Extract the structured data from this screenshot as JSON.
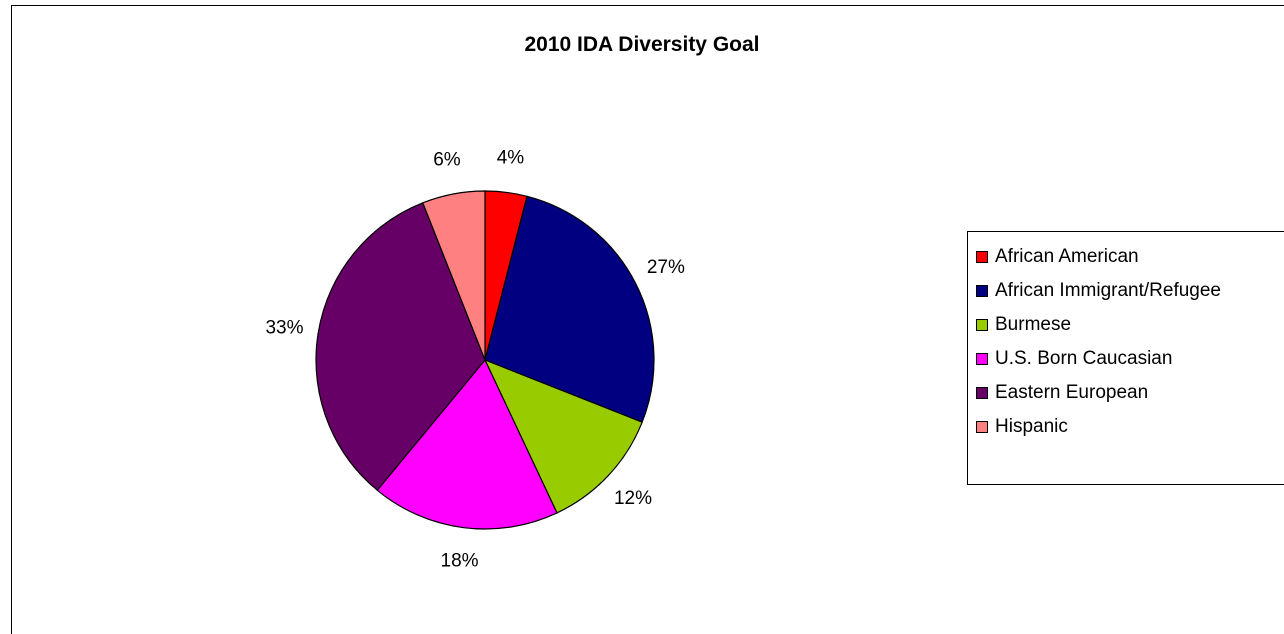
{
  "chart_data": {
    "type": "pie",
    "title": "2010 IDA Diversity Goal",
    "legend_position": "right",
    "slices": [
      {
        "label": "African American",
        "value": 4,
        "display": "4%",
        "color": "#FF0000"
      },
      {
        "label": "African Immigrant/Refugee",
        "value": 27,
        "display": "27%",
        "color": "#000080"
      },
      {
        "label": "Burmese",
        "value": 12,
        "display": "12%",
        "color": "#99CC00"
      },
      {
        "label": "U.S. Born Caucasian",
        "value": 18,
        "display": "18%",
        "color": "#FF00FF"
      },
      {
        "label": "Eastern European",
        "value": 33,
        "display": "33%",
        "color": "#660066"
      },
      {
        "label": "Hispanic",
        "value": 6,
        "display": "6%",
        "color": "#FF8080"
      }
    ]
  }
}
